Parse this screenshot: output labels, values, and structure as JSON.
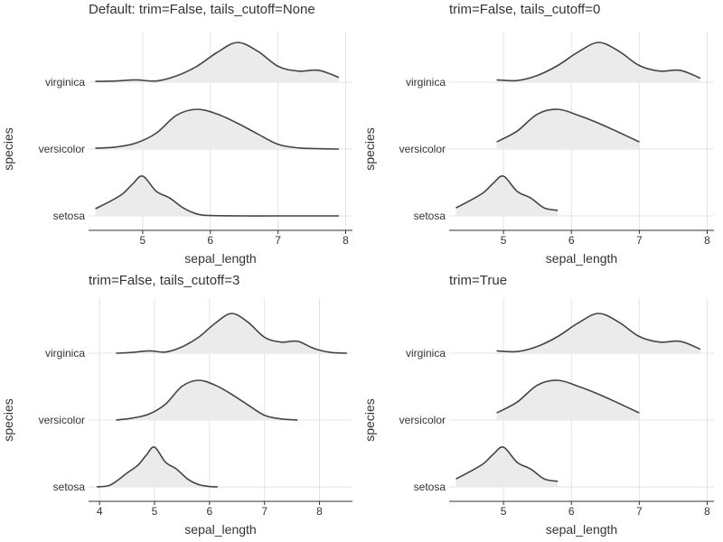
{
  "figure": {
    "background": "#ffffff"
  },
  "style": {
    "fill_color": "#ebebeb",
    "line_color": "#444444",
    "grid_color": "#e3e3e3",
    "axis_color": "#333333",
    "text_color": "#333333"
  },
  "chart_data": [
    {
      "type": "ridgeline-density",
      "title": "Default: trim=False, tails_cutoff=None",
      "xlabel": "sepal_length",
      "ylabel": "species",
      "xlim": [
        4.2,
        8.1
      ],
      "xticks": [
        5,
        6,
        7,
        8
      ],
      "xtick_labels": [
        "5",
        "6",
        "7",
        "8"
      ],
      "grid": true,
      "categories": [
        "virginica",
        "versicolor",
        "setosa"
      ],
      "series": [
        {
          "name": "virginica",
          "x": [
            4.3,
            4.6,
            4.9,
            5.2,
            5.5,
            5.8,
            6.1,
            6.4,
            6.7,
            7.0,
            7.3,
            7.6,
            7.9
          ],
          "density": [
            0.02,
            0.03,
            0.06,
            0.03,
            0.16,
            0.4,
            0.75,
            1.0,
            0.78,
            0.4,
            0.28,
            0.3,
            0.12
          ]
        },
        {
          "name": "versicolor",
          "x": [
            4.3,
            4.6,
            4.9,
            5.2,
            5.5,
            5.8,
            6.1,
            6.4,
            6.7,
            7.0,
            7.3,
            7.6,
            7.9
          ],
          "density": [
            0.02,
            0.05,
            0.15,
            0.4,
            0.85,
            1.0,
            0.88,
            0.65,
            0.38,
            0.12,
            0.03,
            0.01,
            0.0
          ]
        },
        {
          "name": "setosa",
          "x": [
            4.3,
            4.5,
            4.7,
            4.85,
            5.0,
            5.2,
            5.4,
            5.6,
            5.8,
            6.0,
            6.5,
            7.0,
            7.9
          ],
          "density": [
            0.18,
            0.35,
            0.55,
            0.8,
            1.0,
            0.62,
            0.45,
            0.2,
            0.05,
            0.01,
            0.0,
            0.0,
            0.0
          ]
        }
      ]
    },
    {
      "type": "ridgeline-density",
      "title": "trim=False, tails_cutoff=0",
      "xlabel": "sepal_length",
      "ylabel": "species",
      "xlim": [
        4.2,
        8.1
      ],
      "xticks": [
        5,
        6,
        7,
        8
      ],
      "xtick_labels": [
        "5",
        "6",
        "7",
        "8"
      ],
      "grid": true,
      "categories": [
        "virginica",
        "versicolor",
        "setosa"
      ],
      "series": [
        {
          "name": "virginica",
          "x": [
            4.9,
            5.2,
            5.5,
            5.8,
            6.1,
            6.4,
            6.7,
            7.0,
            7.3,
            7.6,
            7.9
          ],
          "density": [
            0.06,
            0.04,
            0.17,
            0.42,
            0.76,
            1.0,
            0.78,
            0.42,
            0.28,
            0.3,
            0.1
          ]
        },
        {
          "name": "versicolor",
          "x": [
            4.9,
            5.2,
            5.5,
            5.8,
            6.1,
            6.4,
            6.7,
            7.0
          ],
          "density": [
            0.18,
            0.45,
            0.88,
            1.0,
            0.85,
            0.65,
            0.42,
            0.18
          ]
        },
        {
          "name": "setosa",
          "x": [
            4.3,
            4.5,
            4.7,
            4.85,
            5.0,
            5.2,
            5.4,
            5.6,
            5.8
          ],
          "density": [
            0.2,
            0.38,
            0.58,
            0.82,
            1.0,
            0.62,
            0.45,
            0.2,
            0.14
          ]
        }
      ]
    },
    {
      "type": "ridgeline-density",
      "title": "trim=False, tails_cutoff=3",
      "xlabel": "sepal_length",
      "ylabel": "species",
      "xlim": [
        3.8,
        8.6
      ],
      "xticks": [
        4,
        5,
        6,
        7,
        8
      ],
      "xtick_labels": [
        "4",
        "5",
        "6",
        "7",
        "8"
      ],
      "grid": true,
      "categories": [
        "virginica",
        "versicolor",
        "setosa"
      ],
      "series": [
        {
          "name": "virginica",
          "x": [
            4.3,
            4.6,
            4.9,
            5.2,
            5.5,
            5.8,
            6.1,
            6.4,
            6.7,
            7.0,
            7.3,
            7.6,
            7.9,
            8.2,
            8.5
          ],
          "density": [
            0.0,
            0.02,
            0.06,
            0.03,
            0.16,
            0.4,
            0.75,
            1.0,
            0.78,
            0.4,
            0.28,
            0.3,
            0.12,
            0.02,
            0.0
          ]
        },
        {
          "name": "versicolor",
          "x": [
            4.3,
            4.6,
            4.9,
            5.2,
            5.5,
            5.8,
            6.1,
            6.4,
            6.7,
            7.0,
            7.3,
            7.6
          ],
          "density": [
            0.0,
            0.05,
            0.15,
            0.4,
            0.85,
            1.0,
            0.88,
            0.65,
            0.38,
            0.12,
            0.03,
            0.0
          ]
        },
        {
          "name": "setosa",
          "x": [
            3.95,
            4.2,
            4.5,
            4.7,
            4.85,
            5.0,
            5.2,
            5.4,
            5.6,
            5.8,
            6.0,
            6.15
          ],
          "density": [
            0.0,
            0.05,
            0.35,
            0.55,
            0.8,
            1.0,
            0.62,
            0.45,
            0.2,
            0.06,
            0.01,
            0.0
          ]
        }
      ]
    },
    {
      "type": "ridgeline-density",
      "title": "trim=True",
      "xlabel": "sepal_length",
      "ylabel": "species",
      "xlim": [
        4.2,
        8.1
      ],
      "xticks": [
        5,
        6,
        7,
        8
      ],
      "xtick_labels": [
        "5",
        "6",
        "7",
        "8"
      ],
      "grid": true,
      "categories": [
        "virginica",
        "versicolor",
        "setosa"
      ],
      "series": [
        {
          "name": "virginica",
          "x": [
            4.9,
            5.2,
            5.5,
            5.8,
            6.1,
            6.4,
            6.7,
            7.0,
            7.3,
            7.6,
            7.9
          ],
          "density": [
            0.06,
            0.04,
            0.17,
            0.42,
            0.76,
            1.0,
            0.78,
            0.42,
            0.28,
            0.3,
            0.1
          ]
        },
        {
          "name": "versicolor",
          "x": [
            4.9,
            5.2,
            5.5,
            5.8,
            6.1,
            6.4,
            6.7,
            7.0
          ],
          "density": [
            0.18,
            0.45,
            0.88,
            1.0,
            0.85,
            0.65,
            0.42,
            0.18
          ]
        },
        {
          "name": "setosa",
          "x": [
            4.3,
            4.5,
            4.7,
            4.85,
            5.0,
            5.2,
            5.4,
            5.6,
            5.8
          ],
          "density": [
            0.2,
            0.38,
            0.58,
            0.82,
            1.0,
            0.62,
            0.45,
            0.2,
            0.14
          ]
        }
      ]
    }
  ]
}
